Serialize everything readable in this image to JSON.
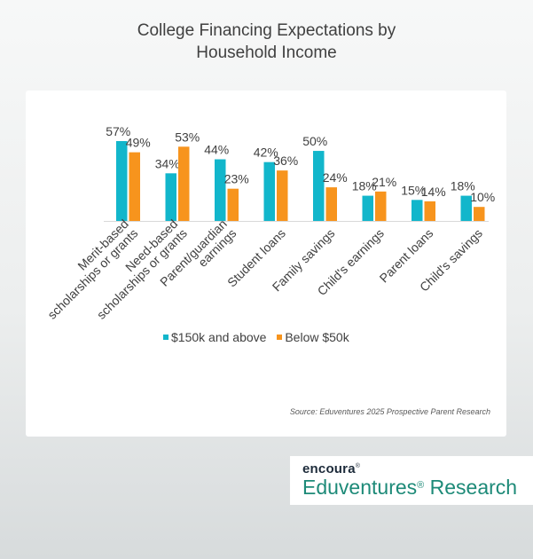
{
  "title_lines": [
    "College Financing Expectations by",
    "Household Income"
  ],
  "source": "Source: Eduventures 2025 Prospective Parent Research",
  "logo": {
    "brand": "encoura",
    "brand_mark": "®",
    "product": "Eduventures",
    "product_mark": "®",
    "product_suffix": " Research"
  },
  "colors": {
    "series1": "#12b6cb",
    "series2": "#f7941d",
    "axis": "#d9d9d9",
    "label": "#404040"
  },
  "chart_data": {
    "type": "bar",
    "title": "College Financing Expectations by Household Income",
    "categories": [
      [
        "Merit-based",
        "scholarships or grants"
      ],
      [
        "Need-based",
        "scholarships or grants"
      ],
      [
        "Parent/guardian",
        "earnings"
      ],
      [
        "Student loans"
      ],
      [
        "Family  savings"
      ],
      [
        "Child's earnings"
      ],
      [
        "Parent loans"
      ],
      [
        "Child's savings"
      ]
    ],
    "series": [
      {
        "name": "$150k and above",
        "values": [
          57,
          34,
          44,
          42,
          50,
          18,
          15,
          18
        ]
      },
      {
        "name": "Below $50k",
        "values": [
          49,
          53,
          23,
          36,
          24,
          21,
          14,
          10
        ]
      }
    ],
    "value_suffix": "%",
    "ylim": [
      0,
      60
    ],
    "grid": false,
    "legend_position": "bottom"
  }
}
